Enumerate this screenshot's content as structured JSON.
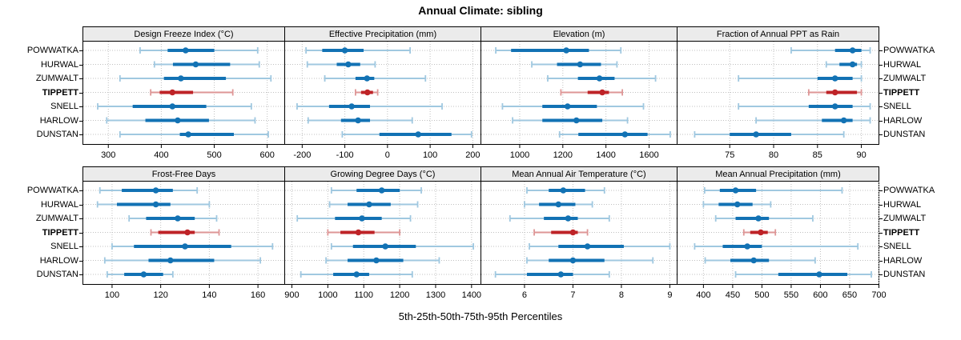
{
  "title": "Annual Climate: sibling",
  "caption": "5th-25th-50th-75th-95th Percentiles",
  "colors": {
    "series_dark": "#1272B4",
    "series_light": "#A0C8E0",
    "highlight_dark": "#BE2327",
    "highlight_light": "#DE9696",
    "grid": "#C0C0C0",
    "header_bg": "#EBEBEB",
    "border": "#000000",
    "background": "#FFFFFF"
  },
  "chart_data": {
    "type": "percentile-interval-dotplot",
    "percentile_levels": [
      5,
      25,
      50,
      75,
      95
    ],
    "layout": {
      "rows": 2,
      "cols": 4,
      "grid": "dotted",
      "legend": "none"
    },
    "stations": [
      "POWWATKA",
      "HURWAL",
      "ZUMWALT",
      "TIPPETT",
      "SNELL",
      "HARLOW",
      "DUNSTAN"
    ],
    "highlight": "TIPPETT",
    "panels": [
      {
        "title": "Design Freeze Index (°C)",
        "xlim": [
          252,
          633
        ],
        "ticks": [
          300,
          400,
          500,
          600
        ],
        "series": [
          {
            "name": "POWWATKA",
            "percentiles": [
              360,
              412,
              446,
              500,
              582
            ]
          },
          {
            "name": "HURWAL",
            "percentiles": [
              387,
              422,
              465,
              530,
              585
            ]
          },
          {
            "name": "ZUMWALT",
            "percentiles": [
              322,
              405,
              437,
              522,
              607
            ]
          },
          {
            "name": "TIPPETT",
            "percentiles": [
              380,
              397,
              421,
              460,
              535
            ]
          },
          {
            "name": "SNELL",
            "percentiles": [
              280,
              346,
              421,
              485,
              570
            ]
          },
          {
            "name": "HARLOW",
            "percentiles": [
              297,
              370,
              431,
              490,
              577
            ]
          },
          {
            "name": "DUNSTAN",
            "percentiles": [
              322,
              435,
              451,
              537,
              602
            ]
          }
        ]
      },
      {
        "title": "Effective Precipitation (mm)",
        "xlim": [
          -241,
          219
        ],
        "ticks": [
          -200,
          -100,
          0,
          100,
          200
        ],
        "series": [
          {
            "name": "POWWATKA",
            "percentiles": [
              -191,
              -153,
              -100,
              -56,
              53
            ]
          },
          {
            "name": "HURWAL",
            "percentiles": [
              -188,
              -119,
              -92,
              -64,
              -29
            ]
          },
          {
            "name": "ZUMWALT",
            "percentiles": [
              -147,
              -75,
              -48,
              -31,
              89
            ]
          },
          {
            "name": "TIPPETT",
            "percentiles": [
              -75,
              -62,
              -47,
              -34,
              -23
            ]
          },
          {
            "name": "SNELL",
            "percentiles": [
              -212,
              -137,
              -84,
              -41,
              128
            ]
          },
          {
            "name": "HARLOW",
            "percentiles": [
              -186,
              -109,
              -69,
              -41,
              58
            ]
          },
          {
            "name": "DUNSTAN",
            "percentiles": [
              -106,
              -19,
              72,
              150,
              197
            ]
          }
        ]
      },
      {
        "title": "Elevation (m)",
        "xlim": [
          820,
          1730
        ],
        "ticks": [
          1000,
          1200,
          1400,
          1600
        ],
        "series": [
          {
            "name": "POWWATKA",
            "percentiles": [
              889,
              960,
              1216,
              1321,
              1469
            ]
          },
          {
            "name": "HURWAL",
            "percentiles": [
              1056,
              1173,
              1280,
              1377,
              1451
            ]
          },
          {
            "name": "ZUMWALT",
            "percentiles": [
              1130,
              1270,
              1370,
              1440,
              1630
            ]
          },
          {
            "name": "TIPPETT",
            "percentiles": [
              1191,
              1315,
              1383,
              1414,
              1476
            ]
          },
          {
            "name": "SNELL",
            "percentiles": [
              920,
              1105,
              1222,
              1358,
              1574
            ]
          },
          {
            "name": "HARLOW",
            "percentiles": [
              967,
              1105,
              1263,
              1383,
              1500
            ]
          },
          {
            "name": "DUNSTAN",
            "percentiles": [
              1185,
              1272,
              1488,
              1593,
              1698
            ]
          }
        ]
      },
      {
        "title": "Fraction of Annual PPT as Rain",
        "xlim": [
          69,
          92
        ],
        "ticks": [
          75,
          80,
          85,
          90
        ],
        "series": [
          {
            "name": "POWWATKA",
            "percentiles": [
              82,
              87,
              89,
              90,
              91
            ]
          },
          {
            "name": "HURWAL",
            "percentiles": [
              86,
              87.5,
              89,
              89.5,
              90
            ]
          },
          {
            "name": "ZUMWALT",
            "percentiles": [
              76,
              85,
              87,
              89,
              90
            ]
          },
          {
            "name": "TIPPETT",
            "percentiles": [
              84,
              86,
              87,
              89.5,
              90
            ]
          },
          {
            "name": "SNELL",
            "percentiles": [
              76,
              84,
              87,
              89,
              91
            ]
          },
          {
            "name": "HARLOW",
            "percentiles": [
              78,
              85.5,
              88,
              89,
              91
            ]
          },
          {
            "name": "DUNSTAN",
            "percentiles": [
              71,
              75,
              78,
              82,
              88
            ]
          }
        ]
      },
      {
        "title": "Frost-Free Days",
        "xlim": [
          88,
          171
        ],
        "ticks": [
          100,
          120,
          140,
          160
        ],
        "series": [
          {
            "name": "POWWATKA",
            "percentiles": [
              95,
              104,
              118,
              125,
              135
            ]
          },
          {
            "name": "HURWAL",
            "percentiles": [
              94,
              102,
              118,
              124,
              140
            ]
          },
          {
            "name": "ZUMWALT",
            "percentiles": [
              107,
              114,
              127,
              134,
              143
            ]
          },
          {
            "name": "TIPPETT",
            "percentiles": [
              116,
              119,
              131,
              134,
              144
            ]
          },
          {
            "name": "SNELL",
            "percentiles": [
              100,
              109,
              130,
              149,
              166
            ]
          },
          {
            "name": "HARLOW",
            "percentiles": [
              97,
              115,
              124,
              142,
              161
            ]
          },
          {
            "name": "DUNSTAN",
            "percentiles": [
              98,
              105,
              113,
              121,
              125
            ]
          }
        ]
      },
      {
        "title": "Growing Degree Days (°C)",
        "xlim": [
          880,
          1426
        ],
        "ticks": [
          900,
          1000,
          1100,
          1200,
          1300,
          1400
        ],
        "series": [
          {
            "name": "POWWATKA",
            "percentiles": [
              1010,
              1080,
              1150,
              1200,
              1260
            ]
          },
          {
            "name": "HURWAL",
            "percentiles": [
              1005,
              1055,
              1115,
              1175,
              1250
            ]
          },
          {
            "name": "ZUMWALT",
            "percentiles": [
              915,
              1020,
              1095,
              1150,
              1230
            ]
          },
          {
            "name": "TIPPETT",
            "percentiles": [
              1000,
              1035,
              1085,
              1130,
              1200
            ]
          },
          {
            "name": "SNELL",
            "percentiles": [
              1010,
              1070,
              1160,
              1245,
              1405
            ]
          },
          {
            "name": "HARLOW",
            "percentiles": [
              995,
              1055,
              1135,
              1210,
              1310
            ]
          },
          {
            "name": "DUNSTAN",
            "percentiles": [
              925,
              1015,
              1080,
              1115,
              1235
            ]
          }
        ]
      },
      {
        "title": "Mean Annual Air Temperature (°C)",
        "xlim": [
          5.1,
          9.15
        ],
        "ticks": [
          6,
          7,
          8,
          9
        ],
        "series": [
          {
            "name": "POWWATKA",
            "percentiles": [
              6.05,
              6.5,
              6.8,
              7.25,
              7.65
            ]
          },
          {
            "name": "HURWAL",
            "percentiles": [
              6.0,
              6.3,
              6.7,
              7.05,
              7.4
            ]
          },
          {
            "name": "ZUMWALT",
            "percentiles": [
              5.7,
              6.4,
              6.9,
              7.1,
              7.75
            ]
          },
          {
            "name": "TIPPETT",
            "percentiles": [
              6.2,
              6.55,
              7.0,
              7.1,
              7.3
            ]
          },
          {
            "name": "SNELL",
            "percentiles": [
              6.1,
              6.7,
              7.3,
              8.05,
              9.0
            ]
          },
          {
            "name": "HARLOW",
            "percentiles": [
              6.05,
              6.5,
              7.0,
              7.65,
              8.65
            ]
          },
          {
            "name": "DUNSTAN",
            "percentiles": [
              5.4,
              6.05,
              6.75,
              7.0,
              7.75
            ]
          }
        ]
      },
      {
        "title": "Mean Annual Precipitation (mm)",
        "xlim": [
          355,
          700
        ],
        "ticks": [
          400,
          450,
          500,
          550,
          600,
          650,
          700
        ],
        "series": [
          {
            "name": "POWWATKA",
            "percentiles": [
              402,
              428,
              455,
              490,
              637
            ]
          },
          {
            "name": "HURWAL",
            "percentiles": [
              400,
              426,
              458,
              484,
              515
            ]
          },
          {
            "name": "ZUMWALT",
            "percentiles": [
              421,
              455,
              494,
              512,
              587
            ]
          },
          {
            "name": "TIPPETT",
            "percentiles": [
              469,
              480,
              498,
              510,
              523
            ]
          },
          {
            "name": "SNELL",
            "percentiles": [
              385,
              433,
              475,
              500,
              664
            ]
          },
          {
            "name": "HARLOW",
            "percentiles": [
              403,
              446,
              486,
              512,
              591
            ]
          },
          {
            "name": "DUNSTAN",
            "percentiles": [
              455,
              528,
              598,
              646,
              687
            ]
          }
        ]
      }
    ]
  }
}
